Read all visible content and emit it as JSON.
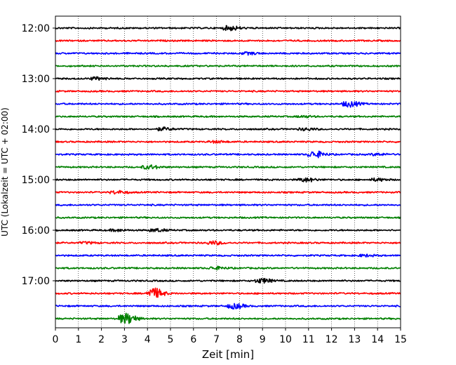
{
  "chart_data": {
    "type": "line",
    "title": "",
    "xlabel": "Zeit  [min]",
    "ylabel": "UTC (Lokalzeit = UTC + 02:00)",
    "xlim": [
      0,
      15
    ],
    "x_ticks": [
      0,
      1,
      2,
      3,
      4,
      5,
      6,
      7,
      8,
      9,
      10,
      11,
      12,
      13,
      14,
      15
    ],
    "y_tick_labels": [
      "12:00",
      "13:00",
      "14:00",
      "15:00",
      "16:00",
      "17:00"
    ],
    "trace_interval_min": 15,
    "grid": "vertical dotted lines at each minute",
    "colors": [
      "#000000",
      "#ff0000",
      "#0000ff",
      "#008000"
    ],
    "series": [
      {
        "start": "12:00",
        "color": "#000000",
        "events": [
          {
            "t": 7.4,
            "amp": 0.7
          }
        ]
      },
      {
        "start": "12:15",
        "color": "#ff0000",
        "events": []
      },
      {
        "start": "12:30",
        "color": "#0000ff",
        "events": [
          {
            "t": 8.2,
            "amp": 0.35
          }
        ]
      },
      {
        "start": "12:45",
        "color": "#008000",
        "events": []
      },
      {
        "start": "13:00",
        "color": "#000000",
        "events": [
          {
            "t": 1.6,
            "amp": 0.4
          }
        ]
      },
      {
        "start": "13:15",
        "color": "#ff0000",
        "events": []
      },
      {
        "start": "13:30",
        "color": "#0000ff",
        "events": [
          {
            "t": 12.6,
            "amp": 0.9
          }
        ]
      },
      {
        "start": "13:45",
        "color": "#008000",
        "events": [
          {
            "t": 10.6,
            "amp": 0.25
          }
        ]
      },
      {
        "start": "14:00",
        "color": "#000000",
        "events": [
          {
            "t": 4.5,
            "amp": 0.45
          },
          {
            "t": 10.7,
            "amp": 0.35
          }
        ]
      },
      {
        "start": "14:15",
        "color": "#ff0000",
        "events": [
          {
            "t": 6.8,
            "amp": 0.3
          }
        ]
      },
      {
        "start": "14:30",
        "color": "#0000ff",
        "events": [
          {
            "t": 11.1,
            "amp": 1.0
          },
          {
            "t": 13.8,
            "amp": 0.3
          }
        ]
      },
      {
        "start": "14:45",
        "color": "#008000",
        "events": [
          {
            "t": 3.9,
            "amp": 0.6
          }
        ]
      },
      {
        "start": "15:00",
        "color": "#000000",
        "events": [
          {
            "t": 10.7,
            "amp": 0.6
          },
          {
            "t": 13.8,
            "amp": 0.4
          }
        ]
      },
      {
        "start": "15:15",
        "color": "#ff0000",
        "events": [
          {
            "t": 2.5,
            "amp": 0.45
          }
        ]
      },
      {
        "start": "15:30",
        "color": "#0000ff",
        "events": []
      },
      {
        "start": "15:45",
        "color": "#008000",
        "events": []
      },
      {
        "start": "16:00",
        "color": "#000000",
        "events": [
          {
            "t": 4.2,
            "amp": 0.45
          },
          {
            "t": 2.5,
            "amp": 0.3
          }
        ]
      },
      {
        "start": "16:15",
        "color": "#ff0000",
        "events": [
          {
            "t": 6.7,
            "amp": 0.5
          },
          {
            "t": 1.2,
            "amp": 0.25
          }
        ]
      },
      {
        "start": "16:30",
        "color": "#0000ff",
        "events": [
          {
            "t": 13.3,
            "amp": 0.3
          }
        ]
      },
      {
        "start": "16:45",
        "color": "#008000",
        "events": [
          {
            "t": 6.8,
            "amp": 0.4
          }
        ]
      },
      {
        "start": "17:00",
        "color": "#000000",
        "events": [
          {
            "t": 8.8,
            "amp": 0.7
          }
        ]
      },
      {
        "start": "17:15",
        "color": "#ff0000",
        "events": [
          {
            "t": 4.1,
            "amp": 1.6
          }
        ]
      },
      {
        "start": "17:30",
        "color": "#0000ff",
        "events": [
          {
            "t": 7.6,
            "amp": 0.8
          }
        ]
      },
      {
        "start": "17:45",
        "color": "#008000",
        "events": [
          {
            "t": 2.9,
            "amp": 1.7
          }
        ]
      }
    ]
  }
}
